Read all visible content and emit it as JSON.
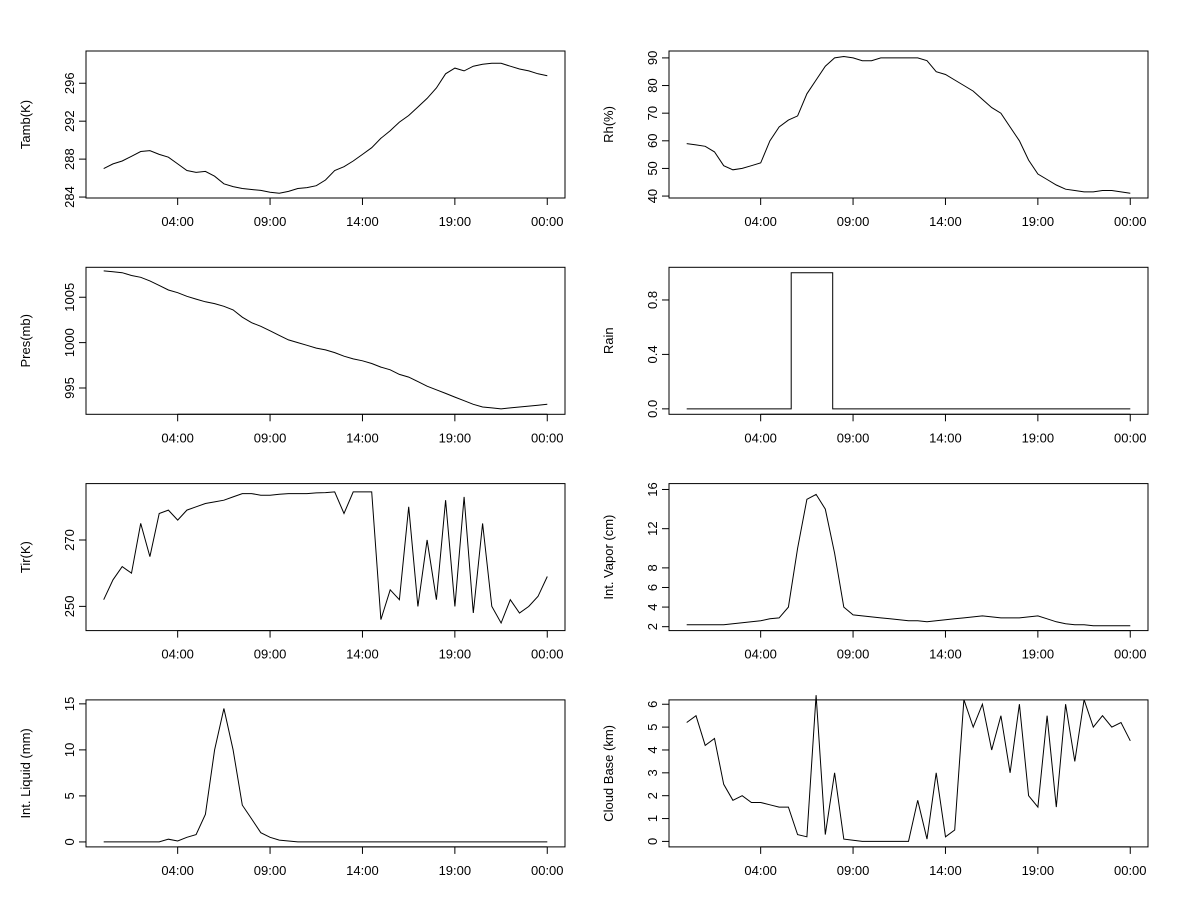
{
  "chart_data": [
    {
      "type": "line",
      "ylabel": "Tamb(K)",
      "xlim": [
        -0.96,
        24.96
      ],
      "ylim": [
        283.9,
        299.4
      ],
      "xticks": [
        {
          "value": 4,
          "label": "04:00"
        },
        {
          "value": 9,
          "label": "09:00"
        },
        {
          "value": 14,
          "label": "14:00"
        },
        {
          "value": 19,
          "label": "19:00"
        },
        {
          "value": 24,
          "label": "00:00"
        }
      ],
      "yticks": [
        284,
        288,
        292,
        296
      ],
      "x": [
        0,
        0.5,
        1,
        1.5,
        2,
        2.5,
        3,
        3.5,
        4,
        4.5,
        5,
        5.5,
        6,
        6.5,
        7,
        7.5,
        8,
        8.5,
        9,
        9.5,
        10,
        10.5,
        11,
        11.5,
        12,
        12.5,
        13,
        13.5,
        14,
        14.5,
        15,
        15.5,
        16,
        16.5,
        17,
        17.5,
        18,
        18.5,
        19,
        19.5,
        20,
        20.5,
        21,
        21.5,
        22,
        22.5,
        23,
        23.5,
        24
      ],
      "values": [
        287.0,
        287.5,
        287.8,
        288.3,
        288.8,
        288.9,
        288.5,
        288.2,
        287.5,
        286.8,
        286.6,
        286.7,
        286.2,
        285.4,
        285.1,
        284.9,
        284.8,
        284.7,
        284.5,
        284.4,
        284.6,
        284.9,
        285.0,
        285.2,
        285.8,
        286.8,
        287.2,
        287.8,
        288.5,
        289.2,
        290.2,
        291.0,
        291.9,
        292.6,
        293.5,
        294.4,
        295.5,
        297.0,
        297.6,
        297.3,
        297.8,
        298.0,
        298.1,
        298.1,
        297.8,
        297.5,
        297.3,
        297.0,
        296.8
      ]
    },
    {
      "type": "line",
      "ylabel": "Rh(%)",
      "xlim": [
        -0.96,
        24.96
      ],
      "ylim": [
        39.3,
        92.5
      ],
      "xticks": [
        {
          "value": 4,
          "label": "04:00"
        },
        {
          "value": 9,
          "label": "09:00"
        },
        {
          "value": 14,
          "label": "14:00"
        },
        {
          "value": 19,
          "label": "19:00"
        },
        {
          "value": 24,
          "label": "00:00"
        }
      ],
      "yticks": [
        40,
        50,
        60,
        70,
        80,
        90
      ],
      "x": [
        0,
        0.5,
        1,
        1.5,
        2,
        2.5,
        3,
        3.5,
        4,
        4.5,
        5,
        5.5,
        6,
        6.5,
        7,
        7.5,
        8,
        8.5,
        9,
        9.5,
        10,
        10.5,
        11,
        11.5,
        12,
        12.5,
        13,
        13.5,
        14,
        14.5,
        15,
        15.5,
        16,
        16.5,
        17,
        17.5,
        18,
        18.5,
        19,
        19.5,
        20,
        20.5,
        21,
        21.5,
        22,
        22.5,
        23,
        23.5,
        24
      ],
      "values": [
        59,
        58.5,
        58,
        56,
        51,
        49.5,
        50,
        51,
        52,
        60,
        65,
        67.5,
        69,
        77,
        82,
        87,
        90,
        90.5,
        90,
        89,
        89,
        90,
        90,
        90,
        90,
        90,
        89,
        85,
        84,
        82,
        80,
        78,
        75,
        72,
        70,
        65,
        60,
        53,
        48,
        46,
        44,
        42.5,
        42,
        41.5,
        41.5,
        42,
        42,
        41.5,
        41
      ]
    },
    {
      "type": "line",
      "ylabel": "Pres(mb)",
      "xlim": [
        -0.96,
        24.96
      ],
      "ylim": [
        992.1,
        1008.3
      ],
      "xticks": [
        {
          "value": 4,
          "label": "04:00"
        },
        {
          "value": 9,
          "label": "09:00"
        },
        {
          "value": 14,
          "label": "14:00"
        },
        {
          "value": 19,
          "label": "19:00"
        },
        {
          "value": 24,
          "label": "00:00"
        }
      ],
      "yticks": [
        995,
        1000,
        1005
      ],
      "x": [
        0,
        0.5,
        1,
        1.5,
        2,
        2.5,
        3,
        3.5,
        4,
        4.5,
        5,
        5.5,
        6,
        6.5,
        7,
        7.5,
        8,
        8.5,
        9,
        9.5,
        10,
        10.5,
        11,
        11.5,
        12,
        12.5,
        13,
        13.5,
        14,
        14.5,
        15,
        15.5,
        16,
        16.5,
        17,
        17.5,
        18,
        18.5,
        19,
        19.5,
        20,
        20.5,
        21,
        21.5,
        22,
        22.5,
        23,
        23.5,
        24
      ],
      "values": [
        1007.9,
        1007.8,
        1007.7,
        1007.4,
        1007.2,
        1006.8,
        1006.3,
        1005.8,
        1005.5,
        1005.1,
        1004.8,
        1004.5,
        1004.3,
        1004.0,
        1003.6,
        1002.8,
        1002.2,
        1001.8,
        1001.3,
        1000.8,
        1000.3,
        1000.0,
        999.7,
        999.4,
        999.2,
        998.9,
        998.5,
        998.2,
        998.0,
        997.7,
        997.3,
        997.0,
        996.5,
        996.2,
        995.7,
        995.2,
        994.8,
        994.4,
        994.0,
        993.6,
        993.2,
        992.9,
        992.8,
        992.7,
        992.8,
        992.9,
        993.0,
        993.1,
        993.2
      ]
    },
    {
      "type": "line",
      "ylabel": "Rain",
      "xlim": [
        -0.96,
        24.96
      ],
      "ylim": [
        -0.04,
        1.04
      ],
      "xticks": [
        {
          "value": 4,
          "label": "04:00"
        },
        {
          "value": 9,
          "label": "09:00"
        },
        {
          "value": 14,
          "label": "14:00"
        },
        {
          "value": 19,
          "label": "19:00"
        },
        {
          "value": 24,
          "label": "00:00"
        }
      ],
      "yticks": [
        {
          "value": 0,
          "label": "0.0"
        },
        {
          "value": 0.4,
          "label": "0.4"
        },
        {
          "value": 0.8,
          "label": "0.8"
        }
      ],
      "x": [
        0,
        5.65,
        5.65,
        7.9,
        7.9,
        24
      ],
      "values": [
        0,
        0,
        1,
        1,
        0,
        0
      ]
    },
    {
      "type": "line",
      "ylabel": "Tir(K)",
      "xlim": [
        -0.96,
        24.96
      ],
      "ylim": [
        242.7,
        287
      ],
      "xticks": [
        {
          "value": 4,
          "label": "04:00"
        },
        {
          "value": 9,
          "label": "09:00"
        },
        {
          "value": 14,
          "label": "14:00"
        },
        {
          "value": 19,
          "label": "19:00"
        },
        {
          "value": 24,
          "label": "00:00"
        }
      ],
      "yticks": [
        250,
        270
      ],
      "x": [
        0,
        0.5,
        1,
        1.5,
        2,
        2.5,
        3,
        3.5,
        4,
        4.5,
        5,
        5.5,
        6,
        6.5,
        7,
        7.5,
        8,
        8.5,
        9,
        9.5,
        10,
        10.5,
        11,
        11.5,
        12,
        12.5,
        13,
        13.5,
        14,
        14.5,
        15,
        15.5,
        16,
        16.5,
        17,
        17.5,
        18,
        18.5,
        19,
        19.5,
        20,
        20.5,
        21,
        21.5,
        22,
        22.5,
        23,
        23.5,
        24
      ],
      "values": [
        252,
        258,
        262,
        260,
        275,
        265,
        278,
        279,
        276,
        279,
        280,
        281,
        281.5,
        282,
        283,
        284,
        284,
        283.5,
        283.5,
        283.8,
        284,
        284,
        284,
        284.2,
        284.3,
        284.5,
        278,
        284.5,
        284.5,
        284.5,
        246,
        255,
        252,
        280,
        250,
        270,
        252,
        282,
        250,
        283,
        248,
        275,
        250,
        245,
        252,
        248,
        250,
        253,
        259
      ]
    },
    {
      "type": "line",
      "ylabel": "Int. Vapor (cm)",
      "xlim": [
        -0.96,
        24.96
      ],
      "ylim": [
        1.6,
        16.6
      ],
      "xticks": [
        {
          "value": 4,
          "label": "04:00"
        },
        {
          "value": 9,
          "label": "09:00"
        },
        {
          "value": 14,
          "label": "14:00"
        },
        {
          "value": 19,
          "label": "19:00"
        },
        {
          "value": 24,
          "label": "00:00"
        }
      ],
      "yticks": [
        2,
        4,
        6,
        8,
        12,
        16
      ],
      "x": [
        0,
        0.5,
        1,
        1.5,
        2,
        2.5,
        3,
        3.5,
        4,
        4.5,
        5,
        5.5,
        6,
        6.5,
        7,
        7.5,
        8,
        8.5,
        9,
        9.5,
        10,
        10.5,
        11,
        11.5,
        12,
        12.5,
        13,
        13.5,
        14,
        14.5,
        15,
        15.5,
        16,
        16.5,
        17,
        17.5,
        18,
        18.5,
        19,
        19.5,
        20,
        20.5,
        21,
        21.5,
        22,
        22.5,
        23,
        23.5,
        24
      ],
      "values": [
        2.2,
        2.2,
        2.2,
        2.2,
        2.2,
        2.3,
        2.4,
        2.5,
        2.6,
        2.8,
        2.9,
        4,
        10,
        15,
        15.5,
        14,
        9.5,
        4,
        3.2,
        3.1,
        3.0,
        2.9,
        2.8,
        2.7,
        2.6,
        2.6,
        2.5,
        2.6,
        2.7,
        2.8,
        2.9,
        3.0,
        3.1,
        3.0,
        2.9,
        2.9,
        2.9,
        3.0,
        3.1,
        2.8,
        2.5,
        2.3,
        2.2,
        2.2,
        2.1,
        2.1,
        2.1,
        2.1,
        2.1
      ]
    },
    {
      "type": "line",
      "ylabel": "Int. Liquid (mm)",
      "xlim": [
        -0.96,
        24.96
      ],
      "ylim": [
        -0.54,
        15.43
      ],
      "xticks": [
        {
          "value": 4,
          "label": "04:00"
        },
        {
          "value": 9,
          "label": "09:00"
        },
        {
          "value": 14,
          "label": "14:00"
        },
        {
          "value": 19,
          "label": "19:00"
        },
        {
          "value": 24,
          "label": "00:00"
        }
      ],
      "yticks": [
        0,
        5,
        10,
        15
      ],
      "x": [
        0,
        0.5,
        1,
        1.5,
        2,
        2.5,
        3,
        3.5,
        4,
        4.5,
        5,
        5.5,
        6,
        6.5,
        7,
        7.5,
        8,
        8.5,
        9,
        9.5,
        10,
        10.5,
        11,
        11.5,
        12,
        12.5,
        13,
        13.5,
        14,
        14.5,
        15,
        15.5,
        16,
        16.5,
        17,
        17.5,
        18,
        18.5,
        19,
        19.5,
        20,
        20.5,
        21,
        21.5,
        22,
        22.5,
        23,
        23.5,
        24
      ],
      "values": [
        0,
        0,
        0,
        0,
        0,
        0,
        0,
        0.3,
        0.1,
        0.5,
        0.8,
        3,
        10,
        14.5,
        10,
        4,
        2.5,
        1,
        0.5,
        0.2,
        0.1,
        0,
        0,
        0,
        0,
        0,
        0,
        0,
        0,
        0,
        0,
        0,
        0,
        0,
        0,
        0,
        0,
        0,
        0,
        0,
        0,
        0,
        0,
        0,
        0,
        0,
        0,
        0,
        0
      ]
    },
    {
      "type": "line",
      "ylabel": "Cloud Base (km)",
      "xlim": [
        -0.96,
        24.96
      ],
      "ylim": [
        -0.24,
        6.19
      ],
      "xticks": [
        {
          "value": 4,
          "label": "04:00"
        },
        {
          "value": 9,
          "label": "09:00"
        },
        {
          "value": 14,
          "label": "14:00"
        },
        {
          "value": 19,
          "label": "19:00"
        },
        {
          "value": 24,
          "label": "00:00"
        }
      ],
      "yticks": [
        0,
        1,
        2,
        3,
        4,
        5,
        6
      ],
      "x": [
        0,
        0.5,
        1,
        1.5,
        2,
        2.5,
        3,
        3.5,
        4,
        4.5,
        5,
        5.5,
        6,
        6.5,
        7,
        7.5,
        8,
        8.5,
        9,
        9.5,
        10,
        10.5,
        11,
        11.5,
        12,
        12.5,
        13,
        13.5,
        14,
        14.5,
        15,
        15.5,
        16,
        16.5,
        17,
        17.5,
        18,
        18.5,
        19,
        19.5,
        20,
        20.5,
        21,
        21.5,
        22,
        22.5,
        23,
        23.5,
        24
      ],
      "values": [
        5.2,
        5.5,
        4.2,
        4.5,
        2.5,
        1.8,
        2.0,
        1.7,
        1.7,
        1.6,
        1.5,
        1.5,
        0.3,
        0.2,
        6.4,
        0.3,
        3,
        0.1,
        0.05,
        0,
        0,
        0,
        0,
        0,
        0,
        1.8,
        0.1,
        3,
        0.2,
        0.5,
        6.2,
        5,
        6,
        4,
        5.5,
        3,
        6,
        2,
        1.5,
        5.5,
        1.5,
        6,
        3.5,
        6.2,
        5,
        5.5,
        5,
        5.2,
        4.4
      ]
    }
  ]
}
